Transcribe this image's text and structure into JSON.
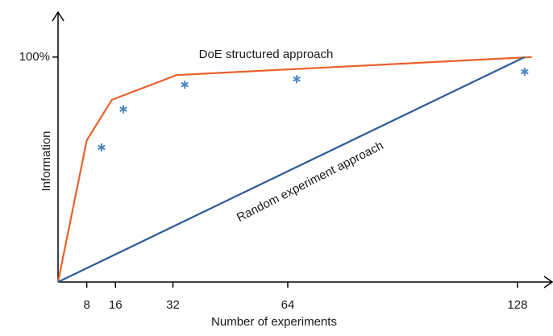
{
  "chart_data": {
    "type": "line",
    "xlabel": "Number of experiments",
    "ylabel": "Information",
    "xlim": [
      0,
      137
    ],
    "ylim": [
      0,
      120
    ],
    "xticks": [
      8,
      16,
      32,
      64,
      128
    ],
    "yticks": [
      {
        "value": 100,
        "label": "100%"
      }
    ],
    "series": [
      {
        "color": "#e8612c",
        "x": [
          0,
          8,
          15,
          33,
          132
        ],
        "values": [
          0,
          63,
          81,
          92,
          100
        ]
      },
      {
        "color": "#2f5b9a",
        "x": [
          0,
          130
        ],
        "values": [
          0,
          100
        ]
      }
    ],
    "markers": {
      "color": "#4a86c8",
      "x": [
        12.1,
        18.2,
        35.3,
        66.5,
        130
      ],
      "values": [
        59.8,
        76.8,
        87.7,
        90.2,
        93.5
      ]
    },
    "annotations": [
      "DoE structured approach",
      "Random experiment approach"
    ]
  }
}
